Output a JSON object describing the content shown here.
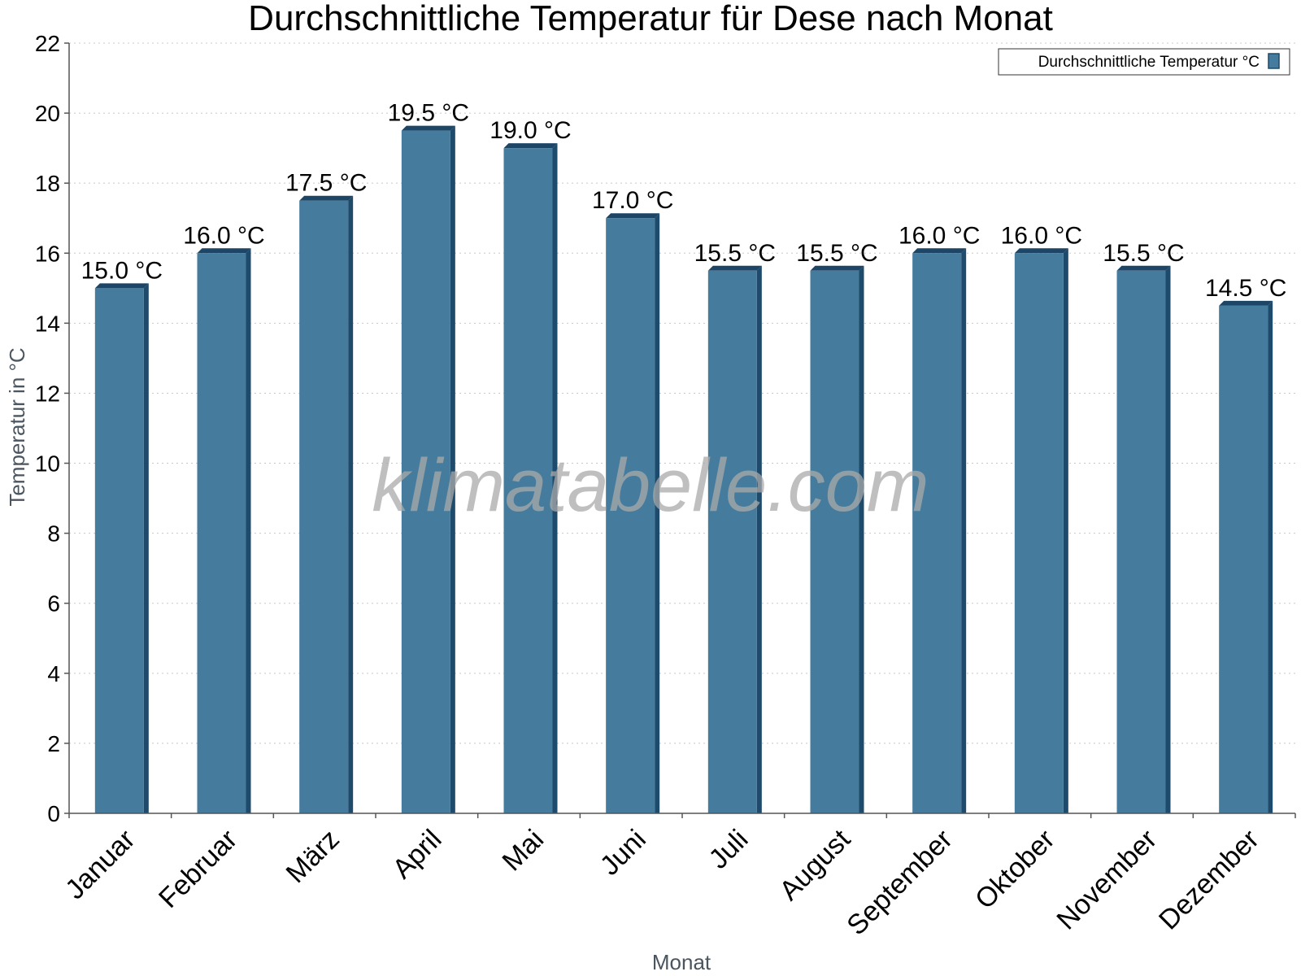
{
  "chart_data": {
    "type": "bar",
    "title": "Durchschnittliche Temperatur für Dese nach Monat",
    "xlabel": "Monat",
    "ylabel": "Temperatur in °C",
    "ylim": [
      0,
      22
    ],
    "yticks": [
      0,
      2,
      4,
      6,
      8,
      10,
      12,
      14,
      16,
      18,
      20,
      22
    ],
    "grid": true,
    "legend_position": "top-right",
    "categories": [
      "Januar",
      "Februar",
      "März",
      "April",
      "Mai",
      "Juni",
      "Juli",
      "August",
      "September",
      "Oktober",
      "November",
      "Dezember"
    ],
    "series": [
      {
        "name": "Durchschnittliche Temperatur °C",
        "color": "#457b9d",
        "values": [
          15.0,
          16.0,
          17.5,
          19.5,
          19.0,
          17.0,
          15.5,
          15.5,
          16.0,
          16.0,
          15.5,
          14.5
        ],
        "labels": [
          "15.0 °C",
          "16.0 °C",
          "17.5 °C",
          "19.5 °C",
          "19.0 °C",
          "17.0 °C",
          "15.5 °C",
          "15.5 °C",
          "16.0 °C",
          "16.0 °C",
          "15.5 °C",
          "14.5 °C"
        ]
      }
    ],
    "watermark": "klimatabelle.com"
  }
}
